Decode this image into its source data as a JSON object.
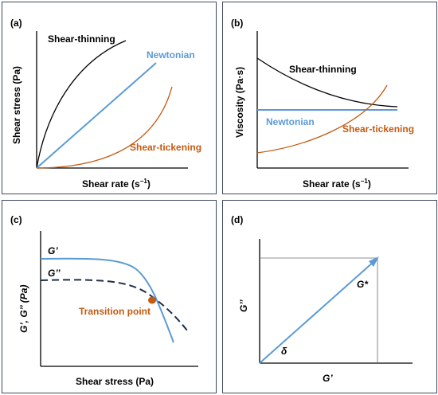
{
  "panel_a": {
    "tag": "(a)",
    "xlabel": "Shear rate (s",
    "xlabel_sup": "−1",
    "xlabel_end": ")",
    "ylabel": "Shear stress (Pa)",
    "series": [
      {
        "name": "Shear-thinning",
        "color": "#000000"
      },
      {
        "name": "Newtonian",
        "color": "#5b9bd5"
      },
      {
        "name": "Shear-tickening",
        "color": "#c55a11"
      }
    ]
  },
  "panel_b": {
    "tag": "(b)",
    "xlabel": "Shear rate (s",
    "xlabel_sup": "−1",
    "xlabel_end": ")",
    "ylabel": "Viscosity (Pa·s)",
    "series": [
      {
        "name": "Shear-thinning",
        "color": "#000000"
      },
      {
        "name": "Newtonian",
        "color": "#5b9bd5"
      },
      {
        "name": "Shear-tickening",
        "color": "#c55a11"
      }
    ]
  },
  "panel_c": {
    "tag": "(c)",
    "xlabel": "Shear stress (Pa)",
    "ylabel": "G’, G’’ (Pa)",
    "g_prime": "G’",
    "g_double": "G’’",
    "transition": "Transition point",
    "colors": {
      "g_prime": "#5b9bd5",
      "g_double": "#1f2d4a",
      "transition": "#c55a11"
    }
  },
  "panel_d": {
    "tag": "(d)",
    "xlabel": "G’",
    "ylabel": "G’’",
    "vector": "G*",
    "angle": "δ",
    "colors": {
      "vector": "#5b9bd5"
    }
  }
}
